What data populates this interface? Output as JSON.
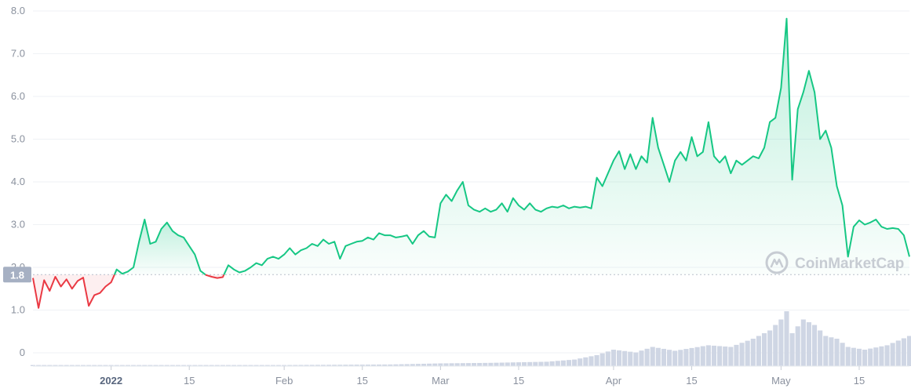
{
  "chart_data": {
    "type": "line",
    "title": "",
    "xlabel": "",
    "ylabel": "",
    "ylim": [
      0,
      8
    ],
    "y_ticks": [
      "0",
      "1.0",
      "2.0",
      "3.0",
      "4.0",
      "5.0",
      "6.0",
      "7.0",
      "8.0"
    ],
    "x_ticks": [
      {
        "label": "2022",
        "date": "2022-01-01",
        "bold": true
      },
      {
        "label": "15",
        "date": "2022-01-15"
      },
      {
        "label": "Feb",
        "date": "2022-02-01"
      },
      {
        "label": "15",
        "date": "2022-02-15"
      },
      {
        "label": "Mar",
        "date": "2022-03-01"
      },
      {
        "label": "15",
        "date": "2022-03-15"
      },
      {
        "label": "Apr",
        "date": "2022-04-01"
      },
      {
        "label": "15",
        "date": "2022-04-15"
      },
      {
        "label": "May",
        "date": "2022-05-01"
      },
      {
        "label": "15",
        "date": "2022-05-15"
      }
    ],
    "reference": {
      "label": "1.8",
      "value": 1.83
    },
    "grid": true,
    "colors": {
      "up": "#16c784",
      "down": "#ea3943",
      "volume": "#cfd6e4",
      "reference_badge": "#a6b0c3"
    },
    "x_range": [
      "2021-12-18",
      "2022-05-24"
    ],
    "series": [
      {
        "values": [
          [
            "2021-12-18",
            1.75
          ],
          [
            "2021-12-19",
            1.05
          ],
          [
            "2021-12-20",
            1.7
          ],
          [
            "2021-12-21",
            1.45
          ],
          [
            "2021-12-22",
            1.78
          ],
          [
            "2021-12-23",
            1.55
          ],
          [
            "2021-12-24",
            1.72
          ],
          [
            "2021-12-25",
            1.5
          ],
          [
            "2021-12-26",
            1.68
          ],
          [
            "2021-12-27",
            1.76
          ],
          [
            "2021-12-28",
            1.1
          ],
          [
            "2021-12-29",
            1.35
          ],
          [
            "2021-12-30",
            1.4
          ],
          [
            "2021-12-31",
            1.55
          ],
          [
            "2022-01-01",
            1.65
          ],
          [
            "2022-01-02",
            1.95
          ],
          [
            "2022-01-03",
            1.85
          ],
          [
            "2022-01-04",
            1.9
          ],
          [
            "2022-01-05",
            2.0
          ],
          [
            "2022-01-06",
            2.6
          ],
          [
            "2022-01-07",
            3.12
          ],
          [
            "2022-01-08",
            2.55
          ],
          [
            "2022-01-09",
            2.6
          ],
          [
            "2022-01-10",
            2.9
          ],
          [
            "2022-01-11",
            3.05
          ],
          [
            "2022-01-12",
            2.85
          ],
          [
            "2022-01-13",
            2.75
          ],
          [
            "2022-01-14",
            2.7
          ],
          [
            "2022-01-15",
            2.5
          ],
          [
            "2022-01-16",
            2.3
          ],
          [
            "2022-01-17",
            1.92
          ],
          [
            "2022-01-18",
            1.82
          ],
          [
            "2022-01-19",
            1.78
          ],
          [
            "2022-01-20",
            1.75
          ],
          [
            "2022-01-21",
            1.77
          ],
          [
            "2022-01-22",
            2.05
          ],
          [
            "2022-01-23",
            1.95
          ],
          [
            "2022-01-24",
            1.88
          ],
          [
            "2022-01-25",
            1.92
          ],
          [
            "2022-01-26",
            2.0
          ],
          [
            "2022-01-27",
            2.1
          ],
          [
            "2022-01-28",
            2.05
          ],
          [
            "2022-01-29",
            2.2
          ],
          [
            "2022-01-30",
            2.25
          ],
          [
            "2022-01-31",
            2.2
          ],
          [
            "2022-02-01",
            2.3
          ],
          [
            "2022-02-02",
            2.45
          ],
          [
            "2022-02-03",
            2.3
          ],
          [
            "2022-02-04",
            2.4
          ],
          [
            "2022-02-05",
            2.45
          ],
          [
            "2022-02-06",
            2.55
          ],
          [
            "2022-02-07",
            2.5
          ],
          [
            "2022-02-08",
            2.65
          ],
          [
            "2022-02-09",
            2.55
          ],
          [
            "2022-02-10",
            2.6
          ],
          [
            "2022-02-11",
            2.2
          ],
          [
            "2022-02-12",
            2.5
          ],
          [
            "2022-02-13",
            2.55
          ],
          [
            "2022-02-14",
            2.6
          ],
          [
            "2022-02-15",
            2.62
          ],
          [
            "2022-02-16",
            2.7
          ],
          [
            "2022-02-17",
            2.65
          ],
          [
            "2022-02-18",
            2.8
          ],
          [
            "2022-02-19",
            2.75
          ],
          [
            "2022-02-20",
            2.75
          ],
          [
            "2022-02-21",
            2.7
          ],
          [
            "2022-02-22",
            2.72
          ],
          [
            "2022-02-23",
            2.75
          ],
          [
            "2022-02-24",
            2.55
          ],
          [
            "2022-02-25",
            2.75
          ],
          [
            "2022-02-26",
            2.85
          ],
          [
            "2022-02-27",
            2.72
          ],
          [
            "2022-02-28",
            2.7
          ],
          [
            "2022-03-01",
            3.5
          ],
          [
            "2022-03-02",
            3.7
          ],
          [
            "2022-03-03",
            3.55
          ],
          [
            "2022-03-04",
            3.8
          ],
          [
            "2022-03-05",
            4.0
          ],
          [
            "2022-03-06",
            3.45
          ],
          [
            "2022-03-07",
            3.35
          ],
          [
            "2022-03-08",
            3.3
          ],
          [
            "2022-03-09",
            3.38
          ],
          [
            "2022-03-10",
            3.3
          ],
          [
            "2022-03-11",
            3.35
          ],
          [
            "2022-03-12",
            3.5
          ],
          [
            "2022-03-13",
            3.3
          ],
          [
            "2022-03-14",
            3.62
          ],
          [
            "2022-03-15",
            3.45
          ],
          [
            "2022-03-16",
            3.35
          ],
          [
            "2022-03-17",
            3.5
          ],
          [
            "2022-03-18",
            3.35
          ],
          [
            "2022-03-19",
            3.3
          ],
          [
            "2022-03-20",
            3.38
          ],
          [
            "2022-03-21",
            3.42
          ],
          [
            "2022-03-22",
            3.4
          ],
          [
            "2022-03-23",
            3.45
          ],
          [
            "2022-03-24",
            3.38
          ],
          [
            "2022-03-25",
            3.42
          ],
          [
            "2022-03-26",
            3.4
          ],
          [
            "2022-03-27",
            3.42
          ],
          [
            "2022-03-28",
            3.38
          ],
          [
            "2022-03-29",
            4.1
          ],
          [
            "2022-03-30",
            3.9
          ],
          [
            "2022-03-31",
            4.2
          ],
          [
            "2022-04-01",
            4.5
          ],
          [
            "2022-04-02",
            4.72
          ],
          [
            "2022-04-03",
            4.3
          ],
          [
            "2022-04-04",
            4.65
          ],
          [
            "2022-04-05",
            4.3
          ],
          [
            "2022-04-06",
            4.6
          ],
          [
            "2022-04-07",
            4.45
          ],
          [
            "2022-04-08",
            5.5
          ],
          [
            "2022-04-09",
            4.8
          ],
          [
            "2022-04-10",
            4.4
          ],
          [
            "2022-04-11",
            4.0
          ],
          [
            "2022-04-12",
            4.5
          ],
          [
            "2022-04-13",
            4.7
          ],
          [
            "2022-04-14",
            4.5
          ],
          [
            "2022-04-15",
            5.05
          ],
          [
            "2022-04-16",
            4.6
          ],
          [
            "2022-04-17",
            4.7
          ],
          [
            "2022-04-18",
            5.4
          ],
          [
            "2022-04-19",
            4.6
          ],
          [
            "2022-04-20",
            4.45
          ],
          [
            "2022-04-21",
            4.6
          ],
          [
            "2022-04-22",
            4.2
          ],
          [
            "2022-04-23",
            4.5
          ],
          [
            "2022-04-24",
            4.4
          ],
          [
            "2022-04-25",
            4.5
          ],
          [
            "2022-04-26",
            4.6
          ],
          [
            "2022-04-27",
            4.55
          ],
          [
            "2022-04-28",
            4.8
          ],
          [
            "2022-04-29",
            5.4
          ],
          [
            "2022-04-30",
            5.5
          ],
          [
            "2022-05-01",
            6.2
          ],
          [
            "2022-05-02",
            7.82
          ],
          [
            "2022-05-03",
            4.05
          ],
          [
            "2022-05-04",
            5.7
          ],
          [
            "2022-05-05",
            6.1
          ],
          [
            "2022-05-06",
            6.6
          ],
          [
            "2022-05-07",
            6.1
          ],
          [
            "2022-05-08",
            5.0
          ],
          [
            "2022-05-09",
            5.2
          ],
          [
            "2022-05-10",
            4.8
          ],
          [
            "2022-05-11",
            3.9
          ],
          [
            "2022-05-12",
            3.45
          ],
          [
            "2022-05-13",
            2.25
          ],
          [
            "2022-05-14",
            2.95
          ],
          [
            "2022-05-15",
            3.1
          ],
          [
            "2022-05-16",
            3.0
          ],
          [
            "2022-05-17",
            3.05
          ],
          [
            "2022-05-18",
            3.12
          ],
          [
            "2022-05-19",
            2.95
          ],
          [
            "2022-05-20",
            2.9
          ],
          [
            "2022-05-21",
            2.92
          ],
          [
            "2022-05-22",
            2.9
          ],
          [
            "2022-05-23",
            2.75
          ],
          [
            "2022-05-24",
            2.25
          ]
        ]
      }
    ],
    "volume": {
      "values": [
        [
          "2021-12-18",
          0.02
        ],
        [
          "2022-01-01",
          0.02
        ],
        [
          "2022-02-01",
          0.02
        ],
        [
          "2022-02-20",
          0.03
        ],
        [
          "2022-03-01",
          0.05
        ],
        [
          "2022-03-10",
          0.06
        ],
        [
          "2022-03-20",
          0.08
        ],
        [
          "2022-03-25",
          0.12
        ],
        [
          "2022-03-29",
          0.2
        ],
        [
          "2022-04-01",
          0.3
        ],
        [
          "2022-04-05",
          0.25
        ],
        [
          "2022-04-08",
          0.35
        ],
        [
          "2022-04-12",
          0.28
        ],
        [
          "2022-04-18",
          0.38
        ],
        [
          "2022-04-22",
          0.35
        ],
        [
          "2022-04-26",
          0.5
        ],
        [
          "2022-04-29",
          0.65
        ],
        [
          "2022-05-01",
          0.85
        ],
        [
          "2022-05-02",
          1.0
        ],
        [
          "2022-05-03",
          0.6
        ],
        [
          "2022-05-05",
          0.85
        ],
        [
          "2022-05-07",
          0.75
        ],
        [
          "2022-05-09",
          0.55
        ],
        [
          "2022-05-11",
          0.5
        ],
        [
          "2022-05-13",
          0.35
        ],
        [
          "2022-05-16",
          0.3
        ],
        [
          "2022-05-20",
          0.38
        ],
        [
          "2022-05-24",
          0.55
        ]
      ]
    }
  },
  "watermark": {
    "text": "CoinMarketCap",
    "icon": "coinmarketcap-logo-icon"
  }
}
